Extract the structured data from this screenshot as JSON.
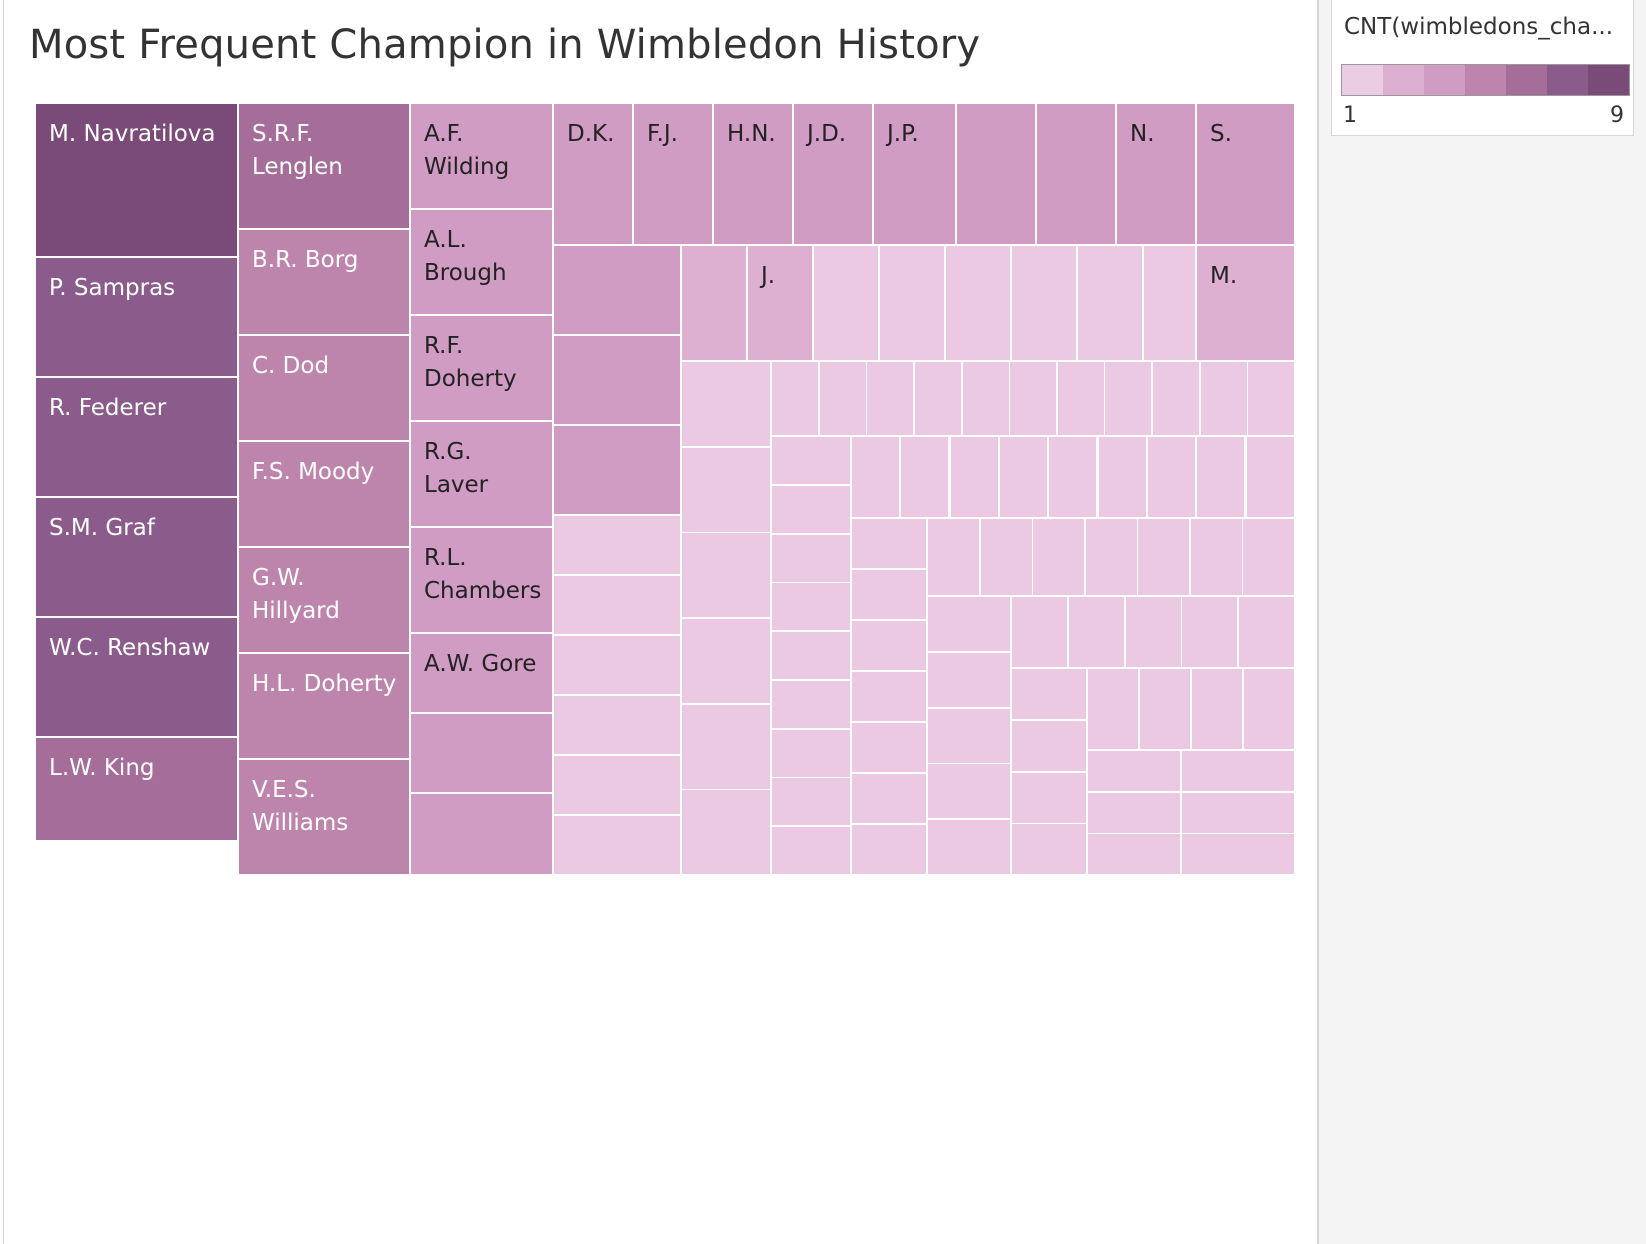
{
  "chart_data": {
    "type": "treemap",
    "title": "Most Frequent Champion in Wimbledon History",
    "measure": "CNT(wimbledons_cha...",
    "color_range": [
      1,
      9
    ],
    "color_ramp": [
      "#eccbe4",
      "#ddb0d2",
      "#d09cc3",
      "#be85ac",
      "#a56d9a",
      "#8b5b8b",
      "#7a4a78"
    ],
    "items": [
      {
        "label": "M. Navratilova",
        "value": 9
      },
      {
        "label": "P. Sampras",
        "value": 7
      },
      {
        "label": "R. Federer",
        "value": 7
      },
      {
        "label": "S.M. Graf",
        "value": 7
      },
      {
        "label": "W.C. Renshaw",
        "value": 7
      },
      {
        "label": "L.W. King",
        "value": 6
      },
      {
        "label": "S.R.F.\nLenglen",
        "value": 6
      },
      {
        "label": "B.R. Borg",
        "value": 5
      },
      {
        "label": "C. Dod",
        "value": 5
      },
      {
        "label": "F.S. Moody",
        "value": 5
      },
      {
        "label": "G.W.\nHillyard",
        "value": 5
      },
      {
        "label": "H.L. Doherty",
        "value": 5
      },
      {
        "label": "V.E.S.\nWilliams",
        "value": 5
      },
      {
        "label": "A.F.\nWilding",
        "value": 4
      },
      {
        "label": "A.L.\nBrough",
        "value": 4
      },
      {
        "label": "R.F.\nDoherty",
        "value": 4
      },
      {
        "label": "R.G.\nLaver",
        "value": 4
      },
      {
        "label": "R.L.\nChambers",
        "value": 4
      },
      {
        "label": "A.W. Gore",
        "value": 3
      },
      {
        "label": "",
        "value": 3
      },
      {
        "label": "",
        "value": 3
      },
      {
        "label": "D.K.",
        "value": 3
      },
      {
        "label": "F.J.",
        "value": 3
      },
      {
        "label": "H.N.",
        "value": 3
      },
      {
        "label": "J.D.",
        "value": 3
      },
      {
        "label": "J.P.",
        "value": 3
      },
      {
        "label": "",
        "value": 3
      },
      {
        "label": "",
        "value": 3
      },
      {
        "label": "N.",
        "value": 3
      },
      {
        "label": "S.",
        "value": 3
      },
      {
        "label": "",
        "value": 3
      },
      {
        "label": "",
        "value": 3
      },
      {
        "label": "",
        "value": 3
      },
      {
        "label": "",
        "value": 2
      },
      {
        "label": "J.",
        "value": 2
      },
      {
        "label": "M.",
        "value": 2
      }
    ]
  }
}
